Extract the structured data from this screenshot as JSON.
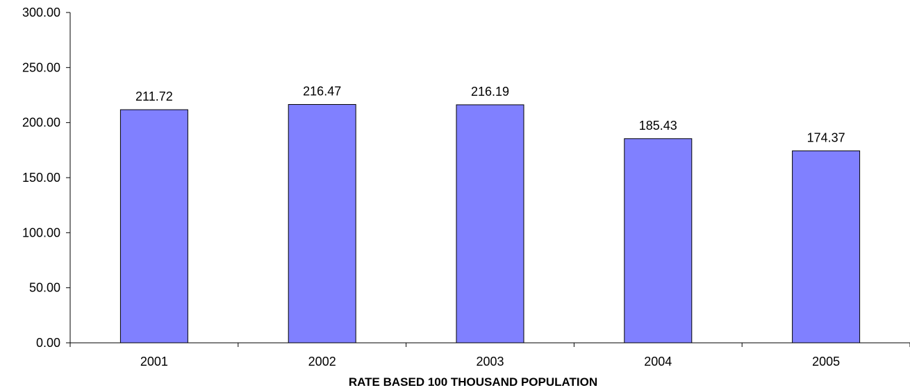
{
  "chart_data": {
    "type": "bar",
    "categories": [
      "2001",
      "2002",
      "2003",
      "2004",
      "2005"
    ],
    "values": [
      211.72,
      216.47,
      216.19,
      185.43,
      174.37
    ],
    "data_labels": [
      "211.72",
      "216.47",
      "216.19",
      "185.43",
      "174.37"
    ],
    "title": "",
    "xlabel": "RATE BASED 100 THOUSAND POPULATION",
    "ylabel": "",
    "ylim": [
      0,
      300
    ],
    "y_ticks": [
      "0.00",
      "50.00",
      "100.00",
      "150.00",
      "200.00",
      "250.00",
      "300.00"
    ],
    "grid": false,
    "legend": "none",
    "bar_color": "#8080ff",
    "bar_edge_color": "#000000"
  }
}
